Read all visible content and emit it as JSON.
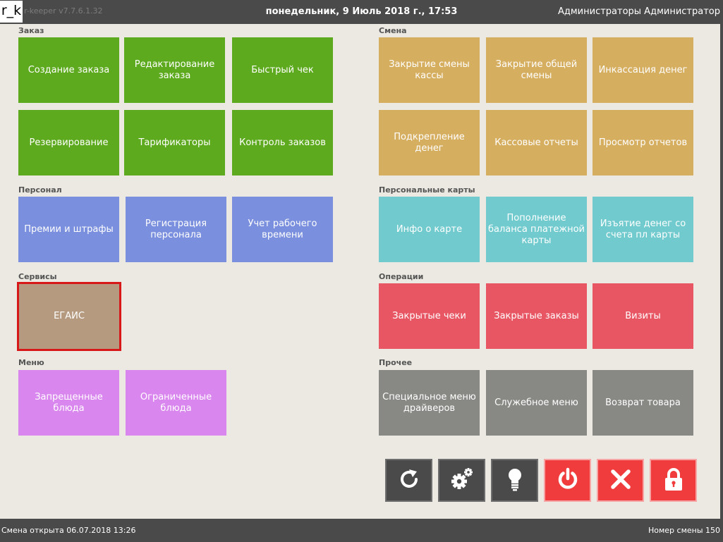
{
  "header": {
    "logo": "r_k",
    "version": "r-keeper v7.7.6.1.32",
    "datetime": "понедельник, 9 Июль 2018 г., 17:53",
    "user": "Администраторы Администратор"
  },
  "sections": {
    "order": {
      "label": "Заказ",
      "tiles": [
        "Создание заказа",
        "Редактирование заказа",
        "Быстрый чек",
        "Резервирование",
        "Тарификаторы",
        "Контроль заказов"
      ]
    },
    "shift": {
      "label": "Смена",
      "tiles": [
        "Закрытие смены кассы",
        "Закрытие общей смены",
        "Инкассация денег",
        "Подкрепление денег",
        "Кассовые отчеты",
        "Просмотр отчетов"
      ]
    },
    "staff": {
      "label": "Персонал",
      "tiles": [
        "Премии и штрафы",
        "Регистрация персонала",
        "Учет рабочего времени"
      ]
    },
    "cards": {
      "label": "Персональные карты",
      "tiles": [
        "Инфо о карте",
        "Пополнение баланса платежной карты",
        "Изъятие денег со счета пл карты"
      ]
    },
    "services": {
      "label": "Сервисы",
      "tiles": [
        "ЕГАИС"
      ]
    },
    "operations": {
      "label": "Операции",
      "tiles": [
        "Закрытые чеки",
        "Закрытые заказы",
        "Визиты"
      ]
    },
    "menu": {
      "label": "Меню",
      "tiles": [
        "Запрещенные блюда",
        "Ограниченные блюда"
      ]
    },
    "other": {
      "label": "Прочее",
      "tiles": [
        "Специальное меню драйверов",
        "Служебное меню",
        "Возврат товара"
      ]
    }
  },
  "controls": [
    "refresh-icon",
    "settings-gears-icon",
    "lightbulb-icon",
    "power-icon",
    "close-icon",
    "lock-icon"
  ],
  "colors": {
    "order": "#5eaa1e",
    "shift": "#d6ae60",
    "staff": "#7a8fdd",
    "cards": "#70cace",
    "services": "#b59a7f",
    "operations": "#e85664",
    "menu": "#d986ef",
    "other": "#888884",
    "control_dark": "#4a4a4a",
    "control_red": "#f03c3c",
    "selected_border": "#d81818"
  },
  "status": {
    "shift_open": "Смена открыта 06.07.2018 13:26",
    "shift_number": "Номер смены 150"
  }
}
